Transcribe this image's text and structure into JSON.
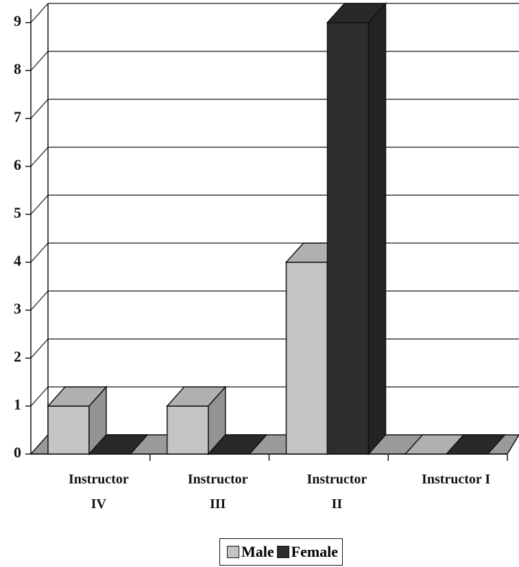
{
  "chart_data": {
    "type": "bar3d",
    "categories": [
      "Instructor IV",
      "Instructor III",
      "Instructor II",
      "Instructor I"
    ],
    "series": [
      {
        "name": "Male",
        "color": "#c4c4c4",
        "values": [
          1,
          1,
          4,
          0
        ]
      },
      {
        "name": "Female",
        "color": "#2e2e2e",
        "values": [
          0,
          0,
          9,
          0
        ]
      }
    ],
    "ylim": [
      0,
      9
    ],
    "yticks": [
      0,
      1,
      2,
      3,
      4,
      5,
      6,
      7,
      8,
      9
    ],
    "grid": true
  }
}
